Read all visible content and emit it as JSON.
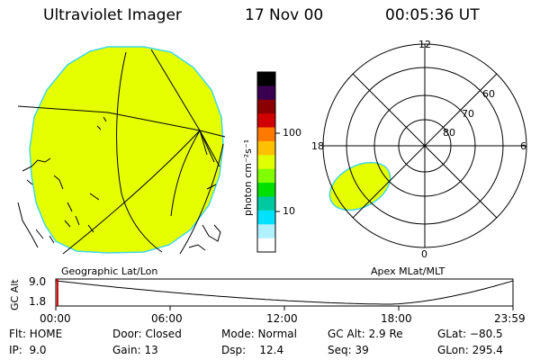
{
  "header": {
    "instrument": "Ultraviolet Imager",
    "date": "17 Nov 00",
    "time": "00:05:36 UT"
  },
  "geo_panel": {
    "label": "Geographic Lat/Lon"
  },
  "colorbar": {
    "units": "photon cm⁻²s⁻¹",
    "ticks": [
      "100",
      "10"
    ],
    "colors": [
      "#000000",
      "#3a0050",
      "#8a0000",
      "#d00000",
      "#ff7800",
      "#ffc000",
      "#e0ff00",
      "#80ff00",
      "#00e000",
      "#00c8a0",
      "#00e0ff",
      "#b0f0ff",
      "#ffffff"
    ]
  },
  "polar_panel": {
    "label": "Apex MLat/MLT",
    "mlt_labels": {
      "top": "12",
      "left": "18",
      "right": "6",
      "bottom": "0"
    },
    "lat_labels": [
      "60",
      "70",
      "80"
    ]
  },
  "alt_plot": {
    "ylabel": "GC Alt",
    "yticks": [
      "9.0",
      "1.8"
    ],
    "xticks": [
      "00:00",
      "06:00",
      "12:00",
      "18:00",
      "23:59"
    ],
    "min_hour": 17.5,
    "cursor_hour": 0.09
  },
  "status": {
    "row1": {
      "flt": "Flt: HOME",
      "door": "Door: Closed",
      "mode": "Mode: Normal",
      "gcalt": "GC Alt: 2.9 Re",
      "glat": "GLat: −80.5"
    },
    "row2": {
      "ip": "IP:  9.0",
      "gain": "Gain: 13",
      "dsp": "Dsp:    12.4",
      "seq": "Seq: 39",
      "glon": "GLon: 295.4"
    }
  },
  "image_color": "#e6ff00",
  "edge_color": "#40d8e8"
}
